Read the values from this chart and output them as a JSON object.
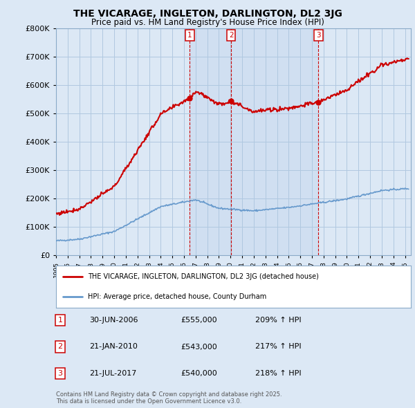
{
  "title": "THE VICARAGE, INGLETON, DARLINGTON, DL2 3JG",
  "subtitle": "Price paid vs. HM Land Registry's House Price Index (HPI)",
  "property_label": "THE VICARAGE, INGLETON, DARLINGTON, DL2 3JG (detached house)",
  "hpi_label": "HPI: Average price, detached house, County Durham",
  "footer": "Contains HM Land Registry data © Crown copyright and database right 2025.\nThis data is licensed under the Open Government Licence v3.0.",
  "sale_points": [
    {
      "num": 1,
      "date": "30-JUN-2006",
      "price": 555000,
      "x_year": 2006.5
    },
    {
      "num": 2,
      "date": "21-JAN-2010",
      "price": 543000,
      "x_year": 2010.05
    },
    {
      "num": 3,
      "date": "21-JUL-2017",
      "price": 540000,
      "x_year": 2017.55
    }
  ],
  "sale_pct": [
    "209% ↑ HPI",
    "217% ↑ HPI",
    "218% ↑ HPI"
  ],
  "ylim": [
    0,
    800000
  ],
  "xlim_start": 1995.0,
  "xlim_end": 2025.5,
  "property_color": "#cc0000",
  "hpi_color": "#6699cc",
  "bg_color": "#dce8f5",
  "plot_bg": "#dce8f5",
  "plot_bg_white": "#ffffff",
  "grid_color": "#b0c8e0",
  "shade_color": "#c5d8ee"
}
